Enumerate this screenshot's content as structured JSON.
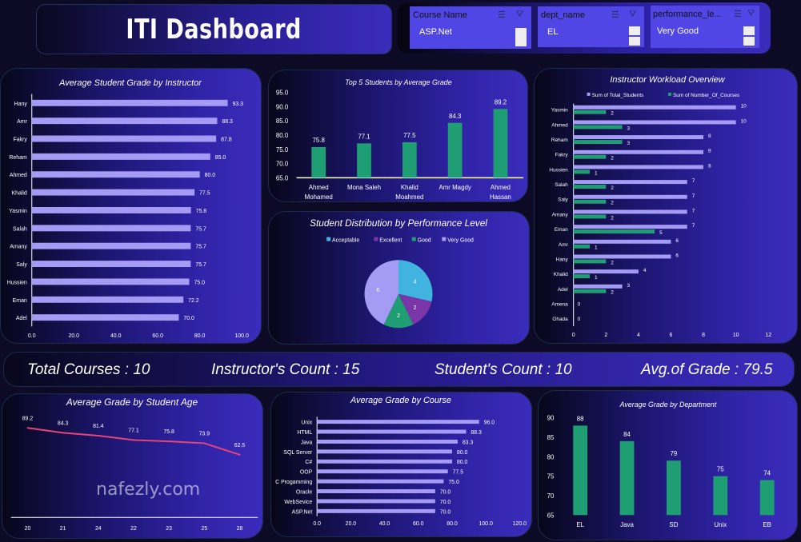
{
  "header": {
    "title": "ITI Dashboard"
  },
  "slicers": [
    {
      "label": "Course Name",
      "selected": "ASP.Net"
    },
    {
      "label": "dept_name",
      "selected": "EL"
    },
    {
      "label": "performance_le...",
      "selected": "Very Good"
    }
  ],
  "kpis": {
    "total_courses": "Total Courses : 10",
    "instructors": "Instructor's Count : 15",
    "students": "Student's Count : 10",
    "avg_grade": "Avg.of Grade : 79.5"
  },
  "colors": {
    "bar": "#a49cf4",
    "green": "#1f9e74",
    "line": "#e6457a",
    "acceptable": "#41b3e0",
    "excellent": "#7a35a8",
    "good": "#1f9e74",
    "very_good": "#a49cf4"
  },
  "watermark": "nafezly.com",
  "chart_data": [
    {
      "id": "instructor_grade",
      "type": "bar",
      "orientation": "horizontal",
      "title": "Average Student Grade by Instructor",
      "categories": [
        "Hany",
        "Amr",
        "Fakry",
        "Reham",
        "Ahmed",
        "Khalid",
        "Yasmin",
        "Salah",
        "Amany",
        "Saly",
        "Hussien",
        "Eman",
        "Adel"
      ],
      "values": [
        93.3,
        88.3,
        87.8,
        85.0,
        80.0,
        77.5,
        75.8,
        75.7,
        75.7,
        75.7,
        75.0,
        72.2,
        70.0
      ],
      "xlim": [
        0,
        100
      ],
      "ticks": [
        "0.0",
        "20.0",
        "40.0",
        "60.0",
        "80.0",
        "100.0"
      ]
    },
    {
      "id": "top5",
      "type": "bar",
      "title": "Top 5 Students by Average Grade",
      "categories": [
        "Ahmed Mohamed",
        "Mona Saleh",
        "Khalid Moahmed",
        "Amr Magdy",
        "Ahmed Hassan"
      ],
      "values": [
        75.8,
        77.1,
        77.5,
        84.3,
        89.2
      ],
      "ylim": [
        65,
        95
      ],
      "ticks": [
        "65.0",
        "70.0",
        "75.0",
        "80.0",
        "85.0",
        "90.0",
        "95.0"
      ]
    },
    {
      "id": "performance",
      "type": "pie",
      "title": "Student Distribution by Performance Level",
      "categories": [
        "Acceptable",
        "Excellent",
        "Good",
        "Very Good"
      ],
      "values": [
        4,
        2,
        2,
        6
      ],
      "legend": "top"
    },
    {
      "id": "workload",
      "type": "bar",
      "orientation": "horizontal",
      "title": "Instructor Workload Overview",
      "legend": "top",
      "categories": [
        "Yasmin",
        "Ahmed",
        "Reham",
        "Fakry",
        "Hussien",
        "Salah",
        "Saly",
        "Amany",
        "Eman",
        "Amr",
        "Hany",
        "Khalid",
        "Adel",
        "Amena",
        "Ghada"
      ],
      "series": [
        {
          "name": "Sum of Total_Students",
          "values": [
            10,
            10,
            8,
            8,
            8,
            7,
            7,
            7,
            7,
            6,
            6,
            4,
            3,
            0,
            0
          ]
        },
        {
          "name": "Sum of Number_Of_Courses",
          "values": [
            2,
            3,
            3,
            2,
            1,
            2,
            2,
            2,
            5,
            1,
            2,
            1,
            2,
            null,
            null
          ]
        }
      ],
      "xlim": [
        0,
        12
      ],
      "ticks": [
        "0",
        "2",
        "4",
        "6",
        "8",
        "10",
        "12"
      ]
    },
    {
      "id": "age",
      "type": "line",
      "title": "Average Grade by Student Age",
      "categories": [
        "20",
        "21",
        "24",
        "22",
        "23",
        "25",
        "28"
      ],
      "values": [
        89.2,
        84.3,
        81.4,
        77.1,
        75.8,
        73.9,
        62.5
      ],
      "ylim": [
        0,
        100
      ]
    },
    {
      "id": "course",
      "type": "bar",
      "orientation": "horizontal",
      "title": "Average Grade by Course",
      "categories": [
        "Unix",
        "HTML",
        "Java",
        "SQL Server",
        "C#",
        "OOP",
        "C Progamming",
        "Oracle",
        "WebSevice",
        "ASP.Net"
      ],
      "values": [
        96.0,
        88.3,
        83.3,
        80.0,
        80.0,
        77.5,
        75.0,
        70.0,
        70.0,
        70.0
      ],
      "xlim": [
        0,
        120
      ],
      "ticks": [
        "0.0",
        "20.0",
        "40.0",
        "60.0",
        "80.0",
        "100.0",
        "120.0"
      ]
    },
    {
      "id": "dept",
      "type": "bar",
      "title": "Average Grade by Department",
      "categories": [
        "EL",
        "Java",
        "SD",
        "Unix",
        "EB"
      ],
      "values": [
        88,
        84,
        79,
        75,
        74
      ],
      "ylim": [
        65,
        90
      ],
      "ticks": [
        "65",
        "70",
        "75",
        "80",
        "85",
        "90"
      ]
    }
  ]
}
